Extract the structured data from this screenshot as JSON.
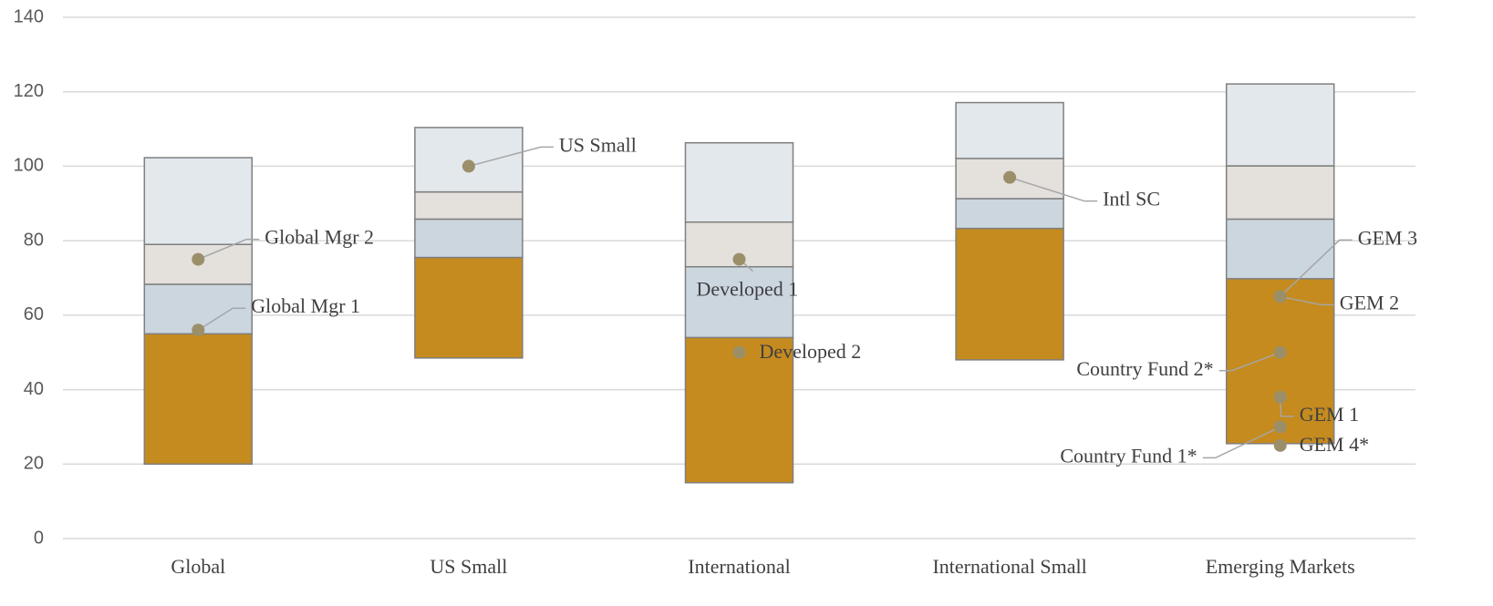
{
  "chart_data": {
    "type": "floating-stacked-bar",
    "categories": [
      "Global",
      "US Small",
      "International",
      "International Small",
      "Emerging Markets"
    ],
    "bases": [
      20,
      48.5,
      15,
      48,
      25.5
    ],
    "series": [
      {
        "color": "#c58b1e",
        "values": [
          35,
          27,
          39,
          35.3,
          44.3
        ]
      },
      {
        "color": "#cbd6df",
        "values": [
          13.3,
          10.3,
          19,
          8,
          16
        ]
      },
      {
        "color": "#e4e0dc",
        "values": [
          10.7,
          7.3,
          12,
          10.8,
          14.3
        ]
      },
      {
        "color": "#e3e8ed",
        "values": [
          23.3,
          17.3,
          21.3,
          15,
          22
        ]
      }
    ],
    "points": [
      {
        "label": "Global Mgr 2",
        "category": "Global",
        "value": 75
      },
      {
        "label": "Global Mgr 1",
        "category": "Global",
        "value": 56
      },
      {
        "label": "US Small",
        "category": "US Small",
        "value": 100
      },
      {
        "label": "Developed 1",
        "category": "International",
        "value": 75
      },
      {
        "label": "Developed 2",
        "category": "International",
        "value": 50
      },
      {
        "label": "Intl SC",
        "category": "International Small",
        "value": 97
      },
      {
        "label": "GEM 3",
        "category": "Emerging Markets",
        "value": 65
      },
      {
        "label": "GEM 2",
        "category": "Emerging Markets",
        "value": 65
      },
      {
        "label": "Country Fund 2*",
        "category": "Emerging Markets",
        "value": 50
      },
      {
        "label": "GEM 1",
        "category": "Emerging Markets",
        "value": 38
      },
      {
        "label": "Country Fund 1*",
        "category": "Emerging Markets",
        "value": 30
      },
      {
        "label": "GEM 4*",
        "category": "Emerging Markets",
        "value": 25
      }
    ],
    "point_color": "#9b8f6a",
    "ylim": [
      0,
      140
    ],
    "yticks": [
      0,
      20,
      40,
      60,
      80,
      100,
      120,
      140
    ],
    "grid": true
  }
}
